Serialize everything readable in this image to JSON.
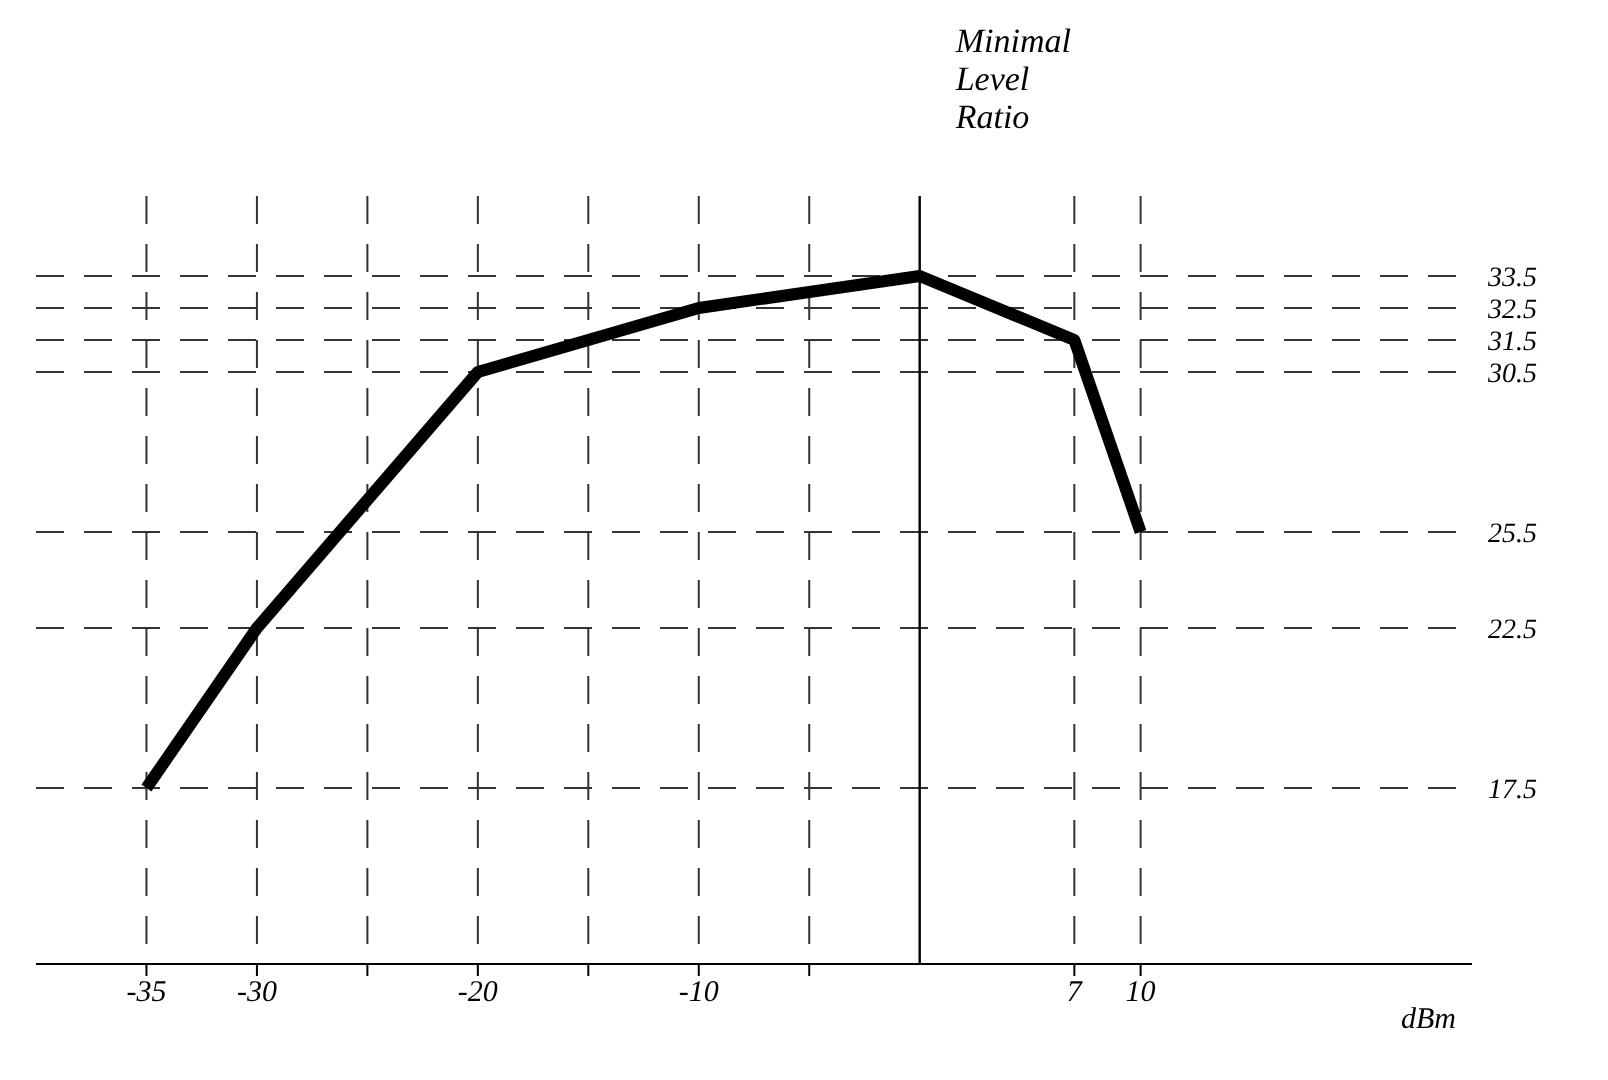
{
  "chart_data": {
    "type": "line",
    "xlabel": "dBm",
    "ylabel": "Minimal Level Ratio",
    "x": [
      -35,
      -30,
      -20,
      -10,
      0,
      7,
      10
    ],
    "series": [
      {
        "color": "#000000",
        "values": [
          17.5,
          22.5,
          30.5,
          32.5,
          33.5,
          31.5,
          25.5
        ]
      }
    ],
    "xlim": [
      -40,
      25
    ],
    "xticks": [
      -35,
      -30,
      {
        "value": -25,
        "label": null
      },
      -20,
      {
        "value": -15,
        "label": null
      },
      -10,
      {
        "value": -5,
        "label": null
      },
      7,
      10
    ],
    "ylim": [
      12,
      36
    ],
    "yticks": [
      17.5,
      22.5,
      25.5,
      30.5,
      31.5,
      32.5,
      33.5
    ],
    "grid": true,
    "legend": false,
    "marker": "none",
    "line_style": "solid"
  }
}
